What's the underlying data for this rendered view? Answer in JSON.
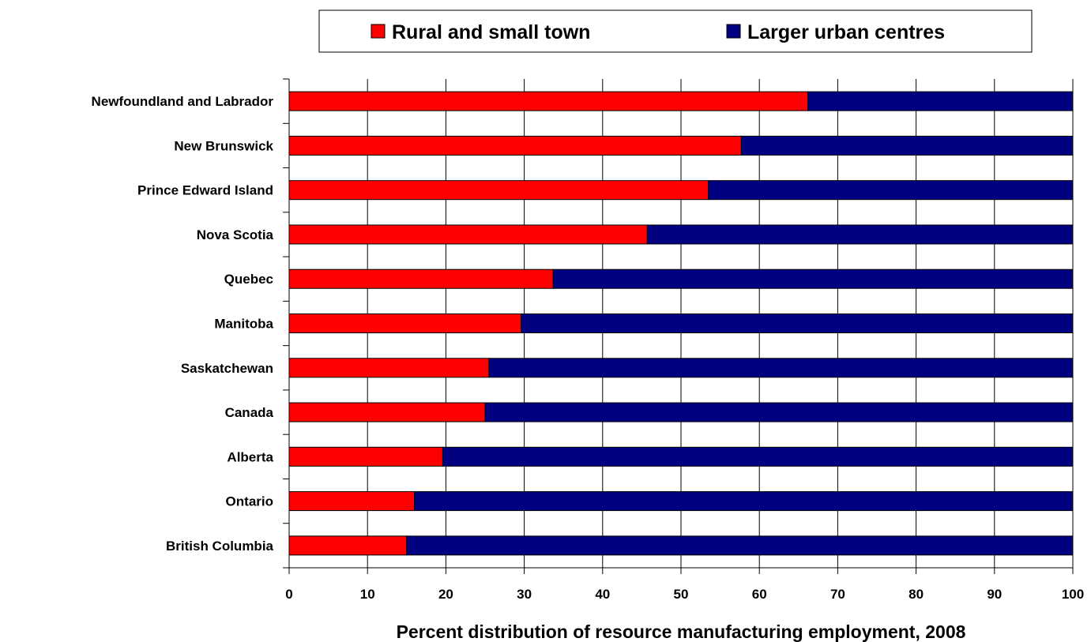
{
  "chart_data": {
    "type": "bar",
    "orientation": "horizontal",
    "stacked": true,
    "categories": [
      "Newfoundland and Labrador",
      "New Brunswick",
      "Prince Edward Island",
      "Nova Scotia",
      "Quebec",
      "Manitoba",
      "Saskatchewan",
      "Canada",
      "Alberta",
      "Ontario",
      "British Columbia"
    ],
    "series": [
      {
        "name": "Rural and small town",
        "color": "#ff0000",
        "values": [
          66.2,
          57.7,
          53.5,
          45.7,
          33.7,
          29.6,
          25.5,
          25.0,
          19.6,
          16.0,
          15.0
        ]
      },
      {
        "name": "Larger urban centres",
        "color": "#000080",
        "values": [
          33.8,
          42.3,
          46.5,
          54.3,
          66.3,
          70.4,
          74.5,
          75.0,
          80.4,
          84.0,
          85.0
        ]
      }
    ],
    "xlabel": "Percent distribution of resource manufacturing employment, 2008",
    "xlim": [
      0,
      100
    ],
    "xticks": [
      "0",
      "10",
      "20",
      "30",
      "40",
      "50",
      "60",
      "70",
      "80",
      "90",
      "100"
    ],
    "grid": true,
    "legend_position": "top"
  }
}
